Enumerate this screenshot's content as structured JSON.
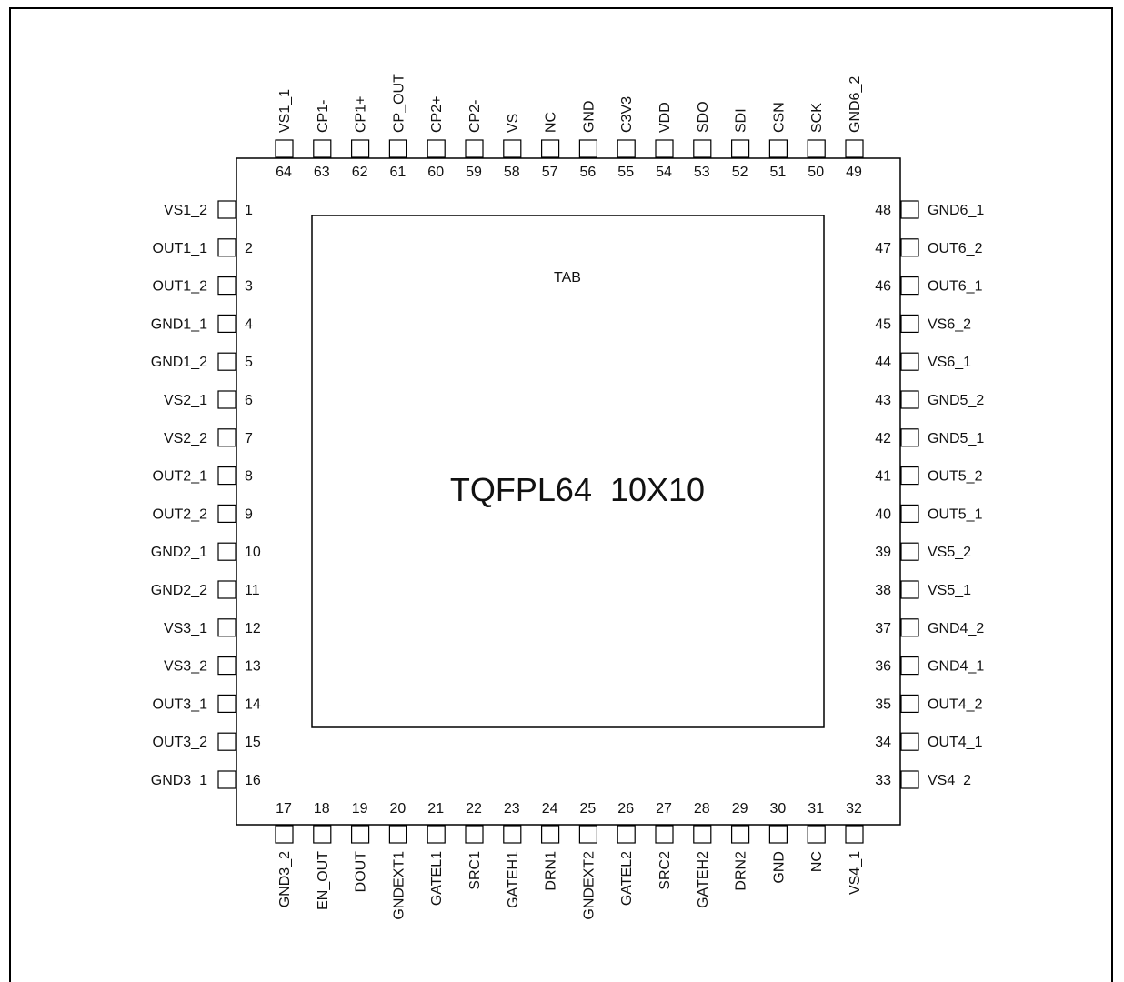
{
  "package_label": "TQFPL64  10X10",
  "tab_label": "TAB",
  "pins_left": [
    {
      "num": "1",
      "name": "VS1_2"
    },
    {
      "num": "2",
      "name": "OUT1_1"
    },
    {
      "num": "3",
      "name": "OUT1_2"
    },
    {
      "num": "4",
      "name": "GND1_1"
    },
    {
      "num": "5",
      "name": "GND1_2"
    },
    {
      "num": "6",
      "name": "VS2_1"
    },
    {
      "num": "7",
      "name": "VS2_2"
    },
    {
      "num": "8",
      "name": "OUT2_1"
    },
    {
      "num": "9",
      "name": "OUT2_2"
    },
    {
      "num": "10",
      "name": "GND2_1"
    },
    {
      "num": "11",
      "name": "GND2_2"
    },
    {
      "num": "12",
      "name": "VS3_1"
    },
    {
      "num": "13",
      "name": "VS3_2"
    },
    {
      "num": "14",
      "name": "OUT3_1"
    },
    {
      "num": "15",
      "name": "OUT3_2"
    },
    {
      "num": "16",
      "name": "GND3_1"
    }
  ],
  "pins_bottom": [
    {
      "num": "17",
      "name": "GND3_2"
    },
    {
      "num": "18",
      "name": "EN_OUT"
    },
    {
      "num": "19",
      "name": "DOUT"
    },
    {
      "num": "20",
      "name": "GNDEXT1"
    },
    {
      "num": "21",
      "name": "GATEL1"
    },
    {
      "num": "22",
      "name": "SRC1"
    },
    {
      "num": "23",
      "name": "GATEH1"
    },
    {
      "num": "24",
      "name": "DRN1"
    },
    {
      "num": "25",
      "name": "GNDEXT2"
    },
    {
      "num": "26",
      "name": "GATEL2"
    },
    {
      "num": "27",
      "name": "SRC2"
    },
    {
      "num": "28",
      "name": "GATEH2"
    },
    {
      "num": "29",
      "name": "DRN2"
    },
    {
      "num": "30",
      "name": "GND"
    },
    {
      "num": "31",
      "name": "NC"
    },
    {
      "num": "32",
      "name": "VS4_1"
    }
  ],
  "pins_right": [
    {
      "num": "33",
      "name": "VS4_2"
    },
    {
      "num": "34",
      "name": "OUT4_1"
    },
    {
      "num": "35",
      "name": "OUT4_2"
    },
    {
      "num": "36",
      "name": "GND4_1"
    },
    {
      "num": "37",
      "name": "GND4_2"
    },
    {
      "num": "38",
      "name": "VS5_1"
    },
    {
      "num": "39",
      "name": "VS5_2"
    },
    {
      "num": "40",
      "name": "OUT5_1"
    },
    {
      "num": "41",
      "name": "OUT5_2"
    },
    {
      "num": "42",
      "name": "GND5_1"
    },
    {
      "num": "43",
      "name": "GND5_2"
    },
    {
      "num": "44",
      "name": "VS6_1"
    },
    {
      "num": "45",
      "name": "VS6_2"
    },
    {
      "num": "46",
      "name": "OUT6_1"
    },
    {
      "num": "47",
      "name": "OUT6_2"
    },
    {
      "num": "48",
      "name": "GND6_1"
    }
  ],
  "pins_top": [
    {
      "num": "49",
      "name": "GND6_2"
    },
    {
      "num": "50",
      "name": "SCK"
    },
    {
      "num": "51",
      "name": "CSN"
    },
    {
      "num": "52",
      "name": "SDI"
    },
    {
      "num": "53",
      "name": "SDO"
    },
    {
      "num": "54",
      "name": "VDD"
    },
    {
      "num": "55",
      "name": "C3V3"
    },
    {
      "num": "56",
      "name": "GND"
    },
    {
      "num": "57",
      "name": "NC"
    },
    {
      "num": "58",
      "name": "VS"
    },
    {
      "num": "59",
      "name": "CP2-"
    },
    {
      "num": "60",
      "name": "CP2+"
    },
    {
      "num": "61",
      "name": "CP_OUT"
    },
    {
      "num": "62",
      "name": "CP1+"
    },
    {
      "num": "63",
      "name": "CP1-"
    },
    {
      "num": "64",
      "name": "VS1_1"
    }
  ]
}
